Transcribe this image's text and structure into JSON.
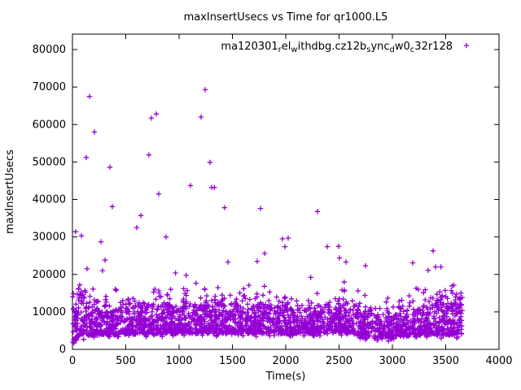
{
  "chart_data": {
    "type": "scatter",
    "title": "maxInsertUsecs vs Time for qr1000.L5",
    "xlabel": "Time(s)",
    "ylabel": "maxInsertUsecs",
    "xlim": [
      0,
      4000
    ],
    "ylim": [
      0,
      80000
    ],
    "xticks": [
      0,
      500,
      1000,
      1500,
      2000,
      2500,
      3000,
      3500,
      4000
    ],
    "yticks": [
      0,
      10000,
      20000,
      30000,
      40000,
      50000,
      60000,
      70000,
      80000
    ],
    "grid": false,
    "background": "#ffffff",
    "axis_color": "#000000",
    "legend": {
      "position": "top-right-inside",
      "display_segments": [
        {
          "text": "ma120301"
        },
        {
          "sub": "r"
        },
        {
          "text": "el"
        },
        {
          "sub": "w"
        },
        {
          "text": "ithdbg.cz12b"
        },
        {
          "sub": "s"
        },
        {
          "text": "ync"
        },
        {
          "sub": "d"
        },
        {
          "text": "w0"
        },
        {
          "sub": "c"
        },
        {
          "text": "32r128"
        }
      ]
    },
    "series": [
      {
        "marker": "plus",
        "color": "#9400d3",
        "time_range_s": [
          3,
          3655
        ],
        "outliers": [
          [
            30,
            31400
          ],
          [
            84,
            30300
          ],
          [
            130,
            51200
          ],
          [
            137,
            21500
          ],
          [
            160,
            67500
          ],
          [
            206,
            58000
          ],
          [
            267,
            28700
          ],
          [
            282,
            21000
          ],
          [
            305,
            23800
          ],
          [
            351,
            48600
          ],
          [
            374,
            38100
          ],
          [
            603,
            32500
          ],
          [
            641,
            35700
          ],
          [
            717,
            51900
          ],
          [
            740,
            61700
          ],
          [
            786,
            62800
          ],
          [
            809,
            41500
          ],
          [
            878,
            30000
          ],
          [
            1107,
            43700
          ],
          [
            1206,
            62000
          ],
          [
            1244,
            69300
          ],
          [
            1290,
            49900
          ],
          [
            1305,
            43200
          ],
          [
            1330,
            43200
          ],
          [
            1427,
            37800
          ],
          [
            1458,
            23300
          ],
          [
            1733,
            23500
          ],
          [
            1763,
            37600
          ],
          [
            1802,
            25600
          ],
          [
            1969,
            29500
          ],
          [
            1992,
            27400
          ],
          [
            2023,
            29700
          ],
          [
            2298,
            36800
          ],
          [
            2389,
            27400
          ],
          [
            2496,
            27500
          ],
          [
            2504,
            24400
          ],
          [
            2565,
            23300
          ],
          [
            2748,
            22300
          ],
          [
            3191,
            23100
          ],
          [
            3336,
            21100
          ],
          [
            3382,
            26300
          ],
          [
            3405,
            22000
          ],
          [
            3456,
            22000
          ]
        ],
        "low_start_points": [
          [
            10,
            2600
          ],
          [
            14,
            1700
          ],
          [
            20,
            2200
          ],
          [
            27,
            2900
          ],
          [
            34,
            3300
          ],
          [
            44,
            3500
          ]
        ],
        "band_model": {
          "count": 2600,
          "seed": 42,
          "upper_envelope": [
            [
              0,
              13500
            ],
            [
              80,
              14500
            ],
            [
              200,
              11500
            ],
            [
              400,
              11000
            ],
            [
              600,
              11800
            ],
            [
              800,
              12000
            ],
            [
              1000,
              11800
            ],
            [
              1200,
              12300
            ],
            [
              1400,
              12000
            ],
            [
              1600,
              11600
            ],
            [
              1800,
              12000
            ],
            [
              2000,
              11400
            ],
            [
              2200,
              10800
            ],
            [
              2400,
              11200
            ],
            [
              2600,
              12800
            ],
            [
              2750,
              10000
            ],
            [
              2900,
              8800
            ],
            [
              3100,
              9200
            ],
            [
              3300,
              11500
            ],
            [
              3450,
              13800
            ],
            [
              3655,
              14000
            ]
          ],
          "lower_envelope": [
            [
              0,
              2000
            ],
            [
              60,
              3400
            ],
            [
              300,
              4200
            ],
            [
              1000,
              4300
            ],
            [
              2000,
              4300
            ],
            [
              2600,
              4600
            ],
            [
              2750,
              3000
            ],
            [
              2950,
              3000
            ],
            [
              3100,
              3800
            ],
            [
              3655,
              3900
            ]
          ],
          "shape_power": 1.7,
          "tail_probability": 0.085,
          "tail_scale": 1600,
          "tail_cap": 21000,
          "bottom_fuzz_probability": 0.03,
          "bottom_fuzz_depth": 900
        }
      }
    ]
  }
}
